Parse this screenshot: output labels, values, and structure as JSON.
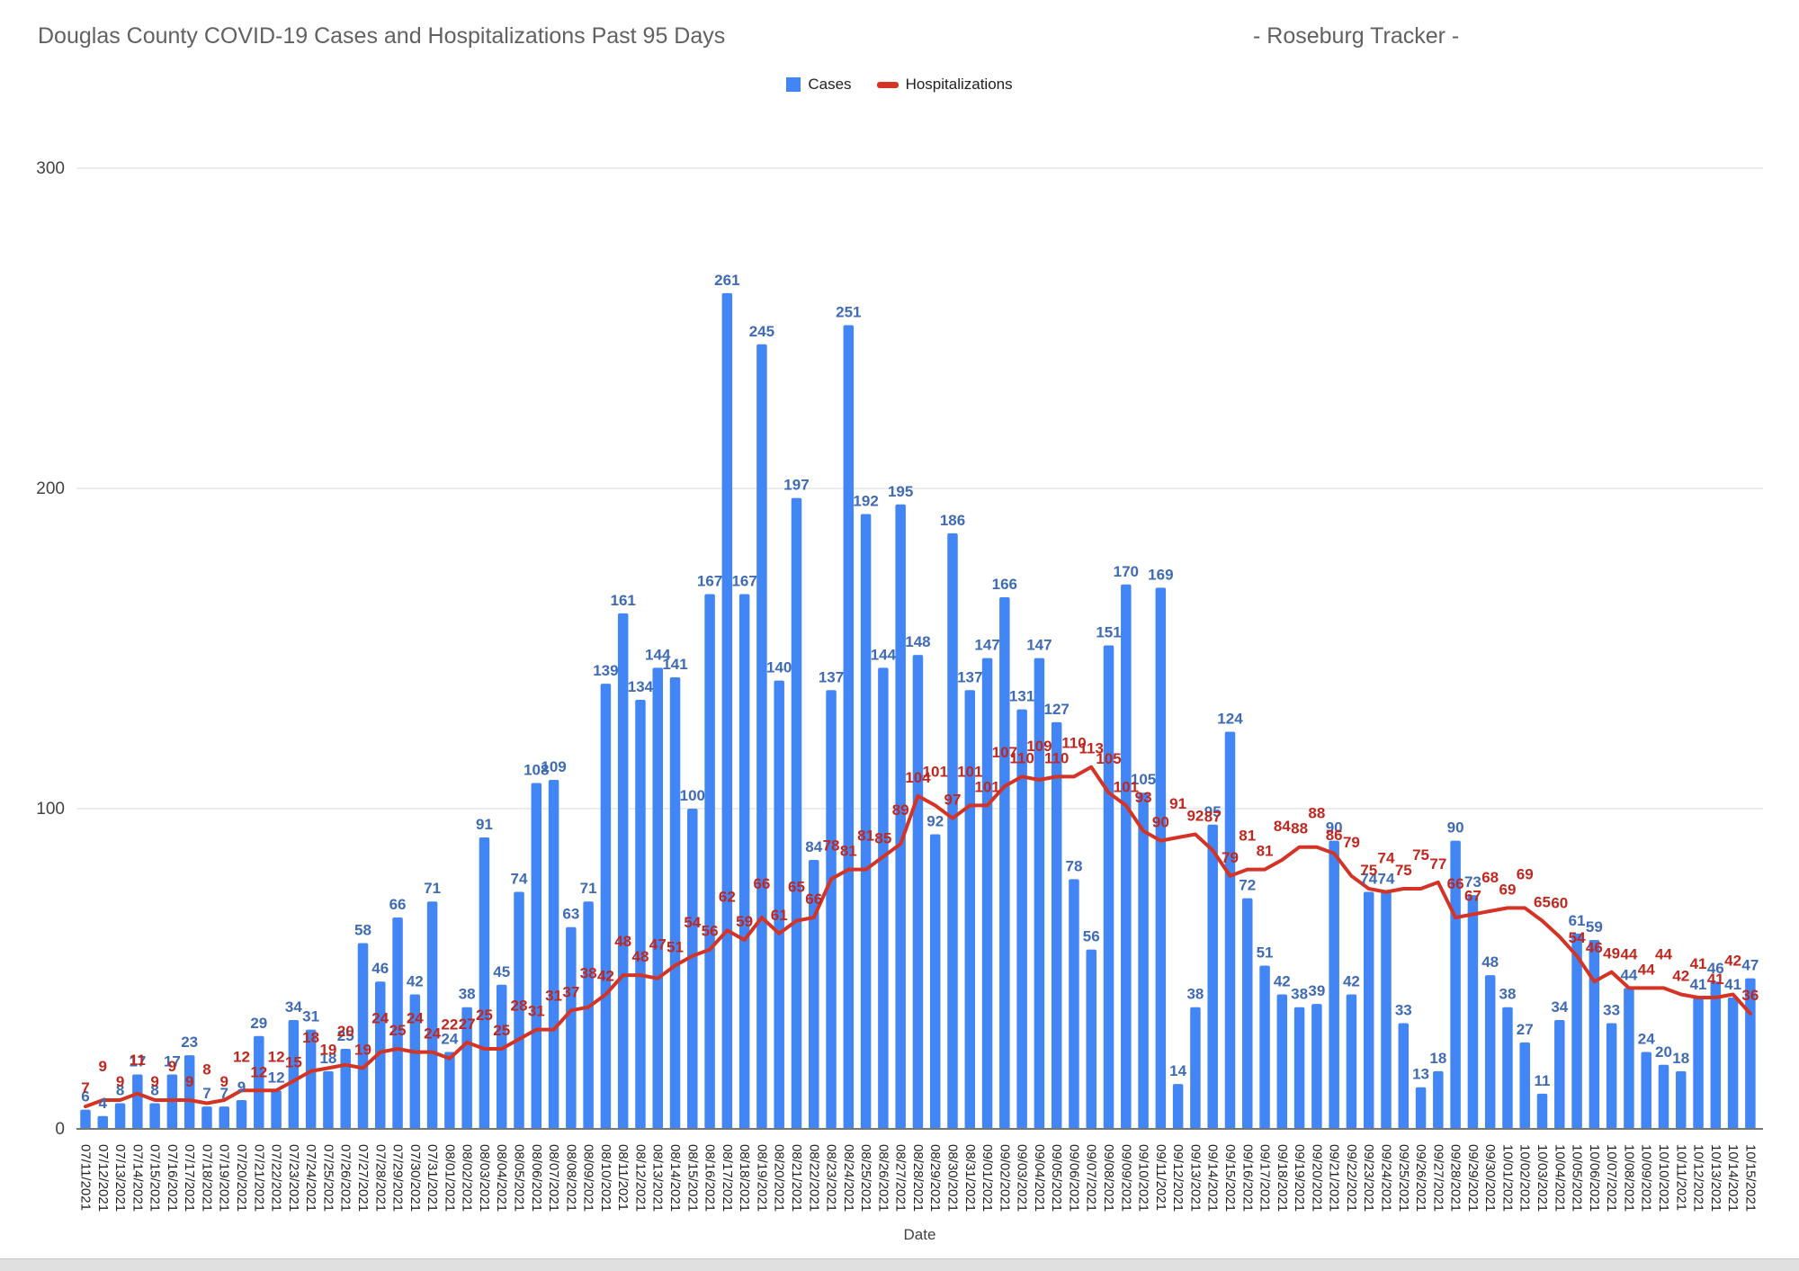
{
  "header": {
    "title": "Douglas County COVID-19 Cases and Hospitalizations Past 95 Days",
    "title_right": "- Roseburg Tracker -"
  },
  "legend": {
    "cases_label": "Cases",
    "hospitalizations_label": "Hospitalizations"
  },
  "colors": {
    "bar": "#4285f4",
    "bar_label": "#3f6bb5",
    "line": "#d33426",
    "line_label": "#c0271e",
    "gridline": "#e6e6e6",
    "axis": "#757575",
    "tick_text": "#424242",
    "date_text": "#212121",
    "title_text": "#616161"
  },
  "chart_data": {
    "type": "bar",
    "title": "Douglas County COVID-19 Cases and Hospitalizations Past 95 Days",
    "xlabel": "Date",
    "ylabel": "",
    "ylim": [
      0,
      300
    ],
    "yticks": [
      0,
      100,
      200,
      300
    ],
    "grid": true,
    "legend_position": "top-center",
    "categories": [
      "07/11/2021",
      "07/12/2021",
      "07/13/2021",
      "07/14/2021",
      "07/15/2021",
      "07/16/2021",
      "07/17/2021",
      "07/18/2021",
      "07/19/2021",
      "07/20/2021",
      "07/21/2021",
      "07/22/2021",
      "07/23/2021",
      "07/24/2021",
      "07/25/2021",
      "07/26/2021",
      "07/27/2021",
      "07/28/2021",
      "07/29/2021",
      "07/30/2021",
      "07/31/2021",
      "08/01/2021",
      "08/02/2021",
      "08/03/2021",
      "08/04/2021",
      "08/05/2021",
      "08/06/2021",
      "08/07/2021",
      "08/08/2021",
      "08/09/2021",
      "08/10/2021",
      "08/11/2021",
      "08/12/2021",
      "08/13/2021",
      "08/14/2021",
      "08/15/2021",
      "08/16/2021",
      "08/17/2021",
      "08/18/2021",
      "08/19/2021",
      "08/20/2021",
      "08/21/2021",
      "08/22/2021",
      "08/23/2021",
      "08/24/2021",
      "08/25/2021",
      "08/26/2021",
      "08/27/2021",
      "08/28/2021",
      "08/29/2021",
      "08/30/2021",
      "08/31/2021",
      "09/01/2021",
      "09/02/2021",
      "09/03/2021",
      "09/04/2021",
      "09/05/2021",
      "09/06/2021",
      "09/07/2021",
      "09/08/2021",
      "09/09/2021",
      "09/10/2021",
      "09/11/2021",
      "09/12/2021",
      "09/13/2021",
      "09/14/2021",
      "09/15/2021",
      "09/16/2021",
      "09/17/2021",
      "09/18/2021",
      "09/19/2021",
      "09/20/2021",
      "09/21/2021",
      "09/22/2021",
      "09/23/2021",
      "09/24/2021",
      "09/25/2021",
      "09/26/2021",
      "09/27/2021",
      "09/28/2021",
      "09/29/2021",
      "09/30/2021",
      "10/01/2021",
      "10/02/2021",
      "10/03/2021",
      "10/04/2021",
      "10/05/2021",
      "10/06/2021",
      "10/07/2021",
      "10/08/2021",
      "10/09/2021",
      "10/10/2021",
      "10/11/2021",
      "10/12/2021",
      "10/13/2021",
      "10/14/2021",
      "10/15/2021"
    ],
    "series": [
      {
        "name": "Cases",
        "type": "bar",
        "color": "#4285f4",
        "values": [
          6,
          4,
          8,
          17,
          8,
          17,
          23,
          7,
          7,
          9,
          29,
          12,
          34,
          31,
          18,
          25,
          58,
          46,
          66,
          42,
          71,
          24,
          38,
          91,
          45,
          74,
          108,
          109,
          63,
          71,
          139,
          161,
          134,
          144,
          141,
          100,
          167,
          261,
          167,
          245,
          140,
          197,
          84,
          137,
          251,
          192,
          144,
          195,
          148,
          92,
          186,
          137,
          147,
          166,
          131,
          147,
          127,
          78,
          56,
          151,
          170,
          105,
          169,
          14,
          38,
          95,
          124,
          72,
          51,
          42,
          38,
          39,
          90,
          42,
          74,
          74,
          33,
          13,
          18,
          90,
          73,
          48,
          38,
          27,
          11,
          34,
          61,
          59,
          33,
          44,
          24,
          20,
          18,
          41,
          46,
          41,
          47
        ]
      },
      {
        "name": "Hospitalizations",
        "type": "line",
        "color": "#d33426",
        "values": [
          7,
          9,
          9,
          11,
          9,
          9,
          9,
          8,
          9,
          12,
          12,
          12,
          15,
          18,
          19,
          20,
          19,
          24,
          25,
          24,
          24,
          22,
          27,
          25,
          25,
          28,
          31,
          31,
          37,
          38,
          42,
          48,
          48,
          47,
          51,
          54,
          56,
          62,
          59,
          66,
          61,
          65,
          66,
          78,
          81,
          81,
          85,
          89,
          104,
          101,
          97,
          101,
          101,
          107,
          110,
          109,
          110,
          110,
          113,
          105,
          101,
          93,
          90,
          91,
          92,
          87,
          79,
          81,
          81,
          84,
          88,
          88,
          86,
          79,
          75,
          74,
          75,
          75,
          77,
          66,
          67,
          68,
          69,
          69,
          65,
          60,
          54,
          46,
          49,
          44,
          44,
          44,
          42,
          41,
          41,
          42,
          36
        ]
      }
    ]
  }
}
